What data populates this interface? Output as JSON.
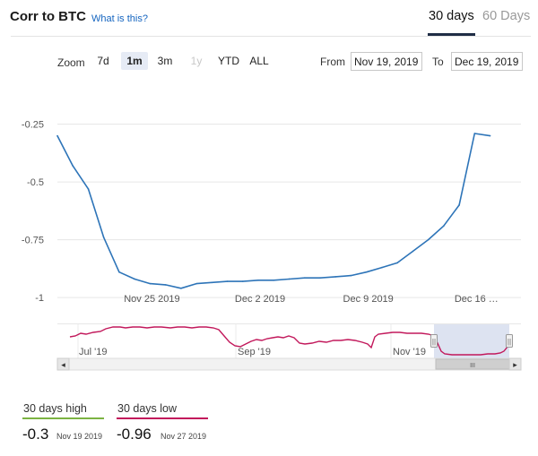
{
  "header": {
    "title": "Corr to BTC",
    "help_link": "What is this?",
    "tabs": [
      {
        "label": "30 days",
        "active": true
      },
      {
        "label": "60 Days",
        "active": false
      }
    ]
  },
  "toolbar": {
    "zoom_label": "Zoom",
    "zoom_buttons": [
      {
        "label": "7d",
        "state": "normal"
      },
      {
        "label": "1m",
        "state": "active"
      },
      {
        "label": "3m",
        "state": "normal"
      },
      {
        "label": "1y",
        "state": "disabled"
      },
      {
        "label": "YTD",
        "state": "normal"
      },
      {
        "label": "ALL",
        "state": "normal"
      }
    ],
    "from_label": "From",
    "from_value": "Nov 19, 2019",
    "to_label": "To",
    "to_value": "Dec 19, 2019"
  },
  "chart_data": {
    "type": "line",
    "line_color": "#2d74b8",
    "y_ticks": [
      "-0.25",
      "-0.5",
      "-0.75",
      "-1"
    ],
    "y_tick_values": [
      -0.25,
      -0.5,
      -0.75,
      -1
    ],
    "ylim": [
      -1.05,
      -0.1
    ],
    "x_ticks": [
      {
        "label": "Nov 25 2019",
        "date": "2019-11-25"
      },
      {
        "label": "Dec 2 2019",
        "date": "2019-12-02"
      },
      {
        "label": "Dec 9 2019",
        "date": "2019-12-09"
      },
      {
        "label": "Dec 16 …",
        "date": "2019-12-16"
      }
    ],
    "xlim": [
      "2019-11-19",
      "2019-12-19"
    ],
    "grid": true,
    "series": [
      {
        "points": [
          {
            "x": "2019-11-19",
            "y": -0.3
          },
          {
            "x": "2019-11-20",
            "y": -0.43
          },
          {
            "x": "2019-11-21",
            "y": -0.53
          },
          {
            "x": "2019-11-22",
            "y": -0.74
          },
          {
            "x": "2019-11-23",
            "y": -0.89
          },
          {
            "x": "2019-11-24",
            "y": -0.92
          },
          {
            "x": "2019-11-25",
            "y": -0.94
          },
          {
            "x": "2019-11-26",
            "y": -0.945
          },
          {
            "x": "2019-11-27",
            "y": -0.96
          },
          {
            "x": "2019-11-28",
            "y": -0.94
          },
          {
            "x": "2019-11-29",
            "y": -0.935
          },
          {
            "x": "2019-11-30",
            "y": -0.93
          },
          {
            "x": "2019-12-01",
            "y": -0.93
          },
          {
            "x": "2019-12-02",
            "y": -0.925
          },
          {
            "x": "2019-12-03",
            "y": -0.925
          },
          {
            "x": "2019-12-04",
            "y": -0.92
          },
          {
            "x": "2019-12-05",
            "y": -0.915
          },
          {
            "x": "2019-12-06",
            "y": -0.915
          },
          {
            "x": "2019-12-07",
            "y": -0.91
          },
          {
            "x": "2019-12-08",
            "y": -0.905
          },
          {
            "x": "2019-12-09",
            "y": -0.89
          },
          {
            "x": "2019-12-10",
            "y": -0.87
          },
          {
            "x": "2019-12-11",
            "y": -0.85
          },
          {
            "x": "2019-12-12",
            "y": -0.8
          },
          {
            "x": "2019-12-13",
            "y": -0.75
          },
          {
            "x": "2019-12-14",
            "y": -0.69
          },
          {
            "x": "2019-12-15",
            "y": -0.6
          },
          {
            "x": "2019-12-16",
            "y": -0.29
          },
          {
            "x": "2019-12-17",
            "y": -0.3
          }
        ]
      }
    ]
  },
  "navigator": {
    "labels": [
      "Jul '19",
      "Sep '19",
      "Nov '19"
    ],
    "line_color": "#c2185b",
    "mask_color": "#dde3f1",
    "scroll_left": "◂",
    "scroll_right": "▸",
    "scroll_thumb": "III",
    "handle_glyph": "||"
  },
  "stats": {
    "high_label": "30 days high",
    "high_value": "-0.3",
    "high_date": "Nov 19 2019",
    "high_color": "#7cb342",
    "low_label": "30 days low",
    "low_value": "-0.96",
    "low_date": "Nov 27 2019",
    "low_color": "#c2185b"
  }
}
